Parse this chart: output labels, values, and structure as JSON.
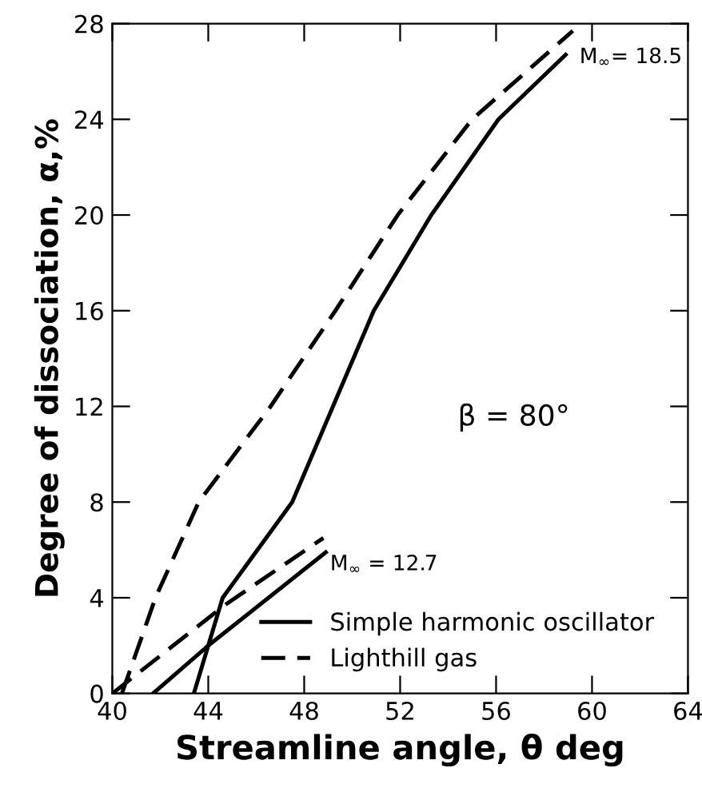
{
  "chart_data": {
    "type": "line",
    "xlabel": "Streamline angle, θ deg",
    "ylabel": "Degree of dissociation, α,%",
    "xlim": [
      40,
      64
    ],
    "xticks": [
      40,
      44,
      48,
      52,
      56,
      60,
      64
    ],
    "ylim": [
      0,
      28
    ],
    "yticks": [
      0,
      4,
      8,
      12,
      16,
      20,
      24,
      28
    ],
    "grid": false,
    "legend": "bottom",
    "marker": "none",
    "series": [
      {
        "name": "Simple harmonic oscillator",
        "color": "#000000",
        "line_style": "solid",
        "x": [
          43.4,
          44.0,
          44.6,
          47.5,
          49.2,
          50.9,
          53.3,
          56.1,
          58.9
        ],
        "values": [
          0,
          2,
          4,
          8,
          12,
          16,
          20,
          24,
          26.7
        ]
      },
      {
        "name": "Lighthill gas",
        "color": "#000000",
        "line_style": "dashed",
        "x": [
          40.4,
          41.8,
          43.6,
          46.6,
          49.3,
          51.9,
          55.0,
          59.2
        ],
        "values": [
          0,
          4,
          8,
          12,
          16,
          20,
          24,
          27.7
        ]
      },
      {
        "color": "#000000",
        "line_style": "solid",
        "x": [
          41.7,
          44.0,
          48.9
        ],
        "values": [
          0,
          2,
          5.9
        ]
      },
      {
        "color": "#000000",
        "line_style": "dashed",
        "x": [
          40.0,
          44.7,
          48.8
        ],
        "values": [
          0,
          3.7,
          6.5
        ]
      }
    ],
    "annotations": [
      {
        "text": "M$_{∞}$= 18.5",
        "x": 59.2,
        "y": 27.7
      },
      {
        "text": "M$_{∞}$ = 12.7",
        "x": 48.8,
        "y": 6.5
      },
      "β = 80°"
    ]
  }
}
